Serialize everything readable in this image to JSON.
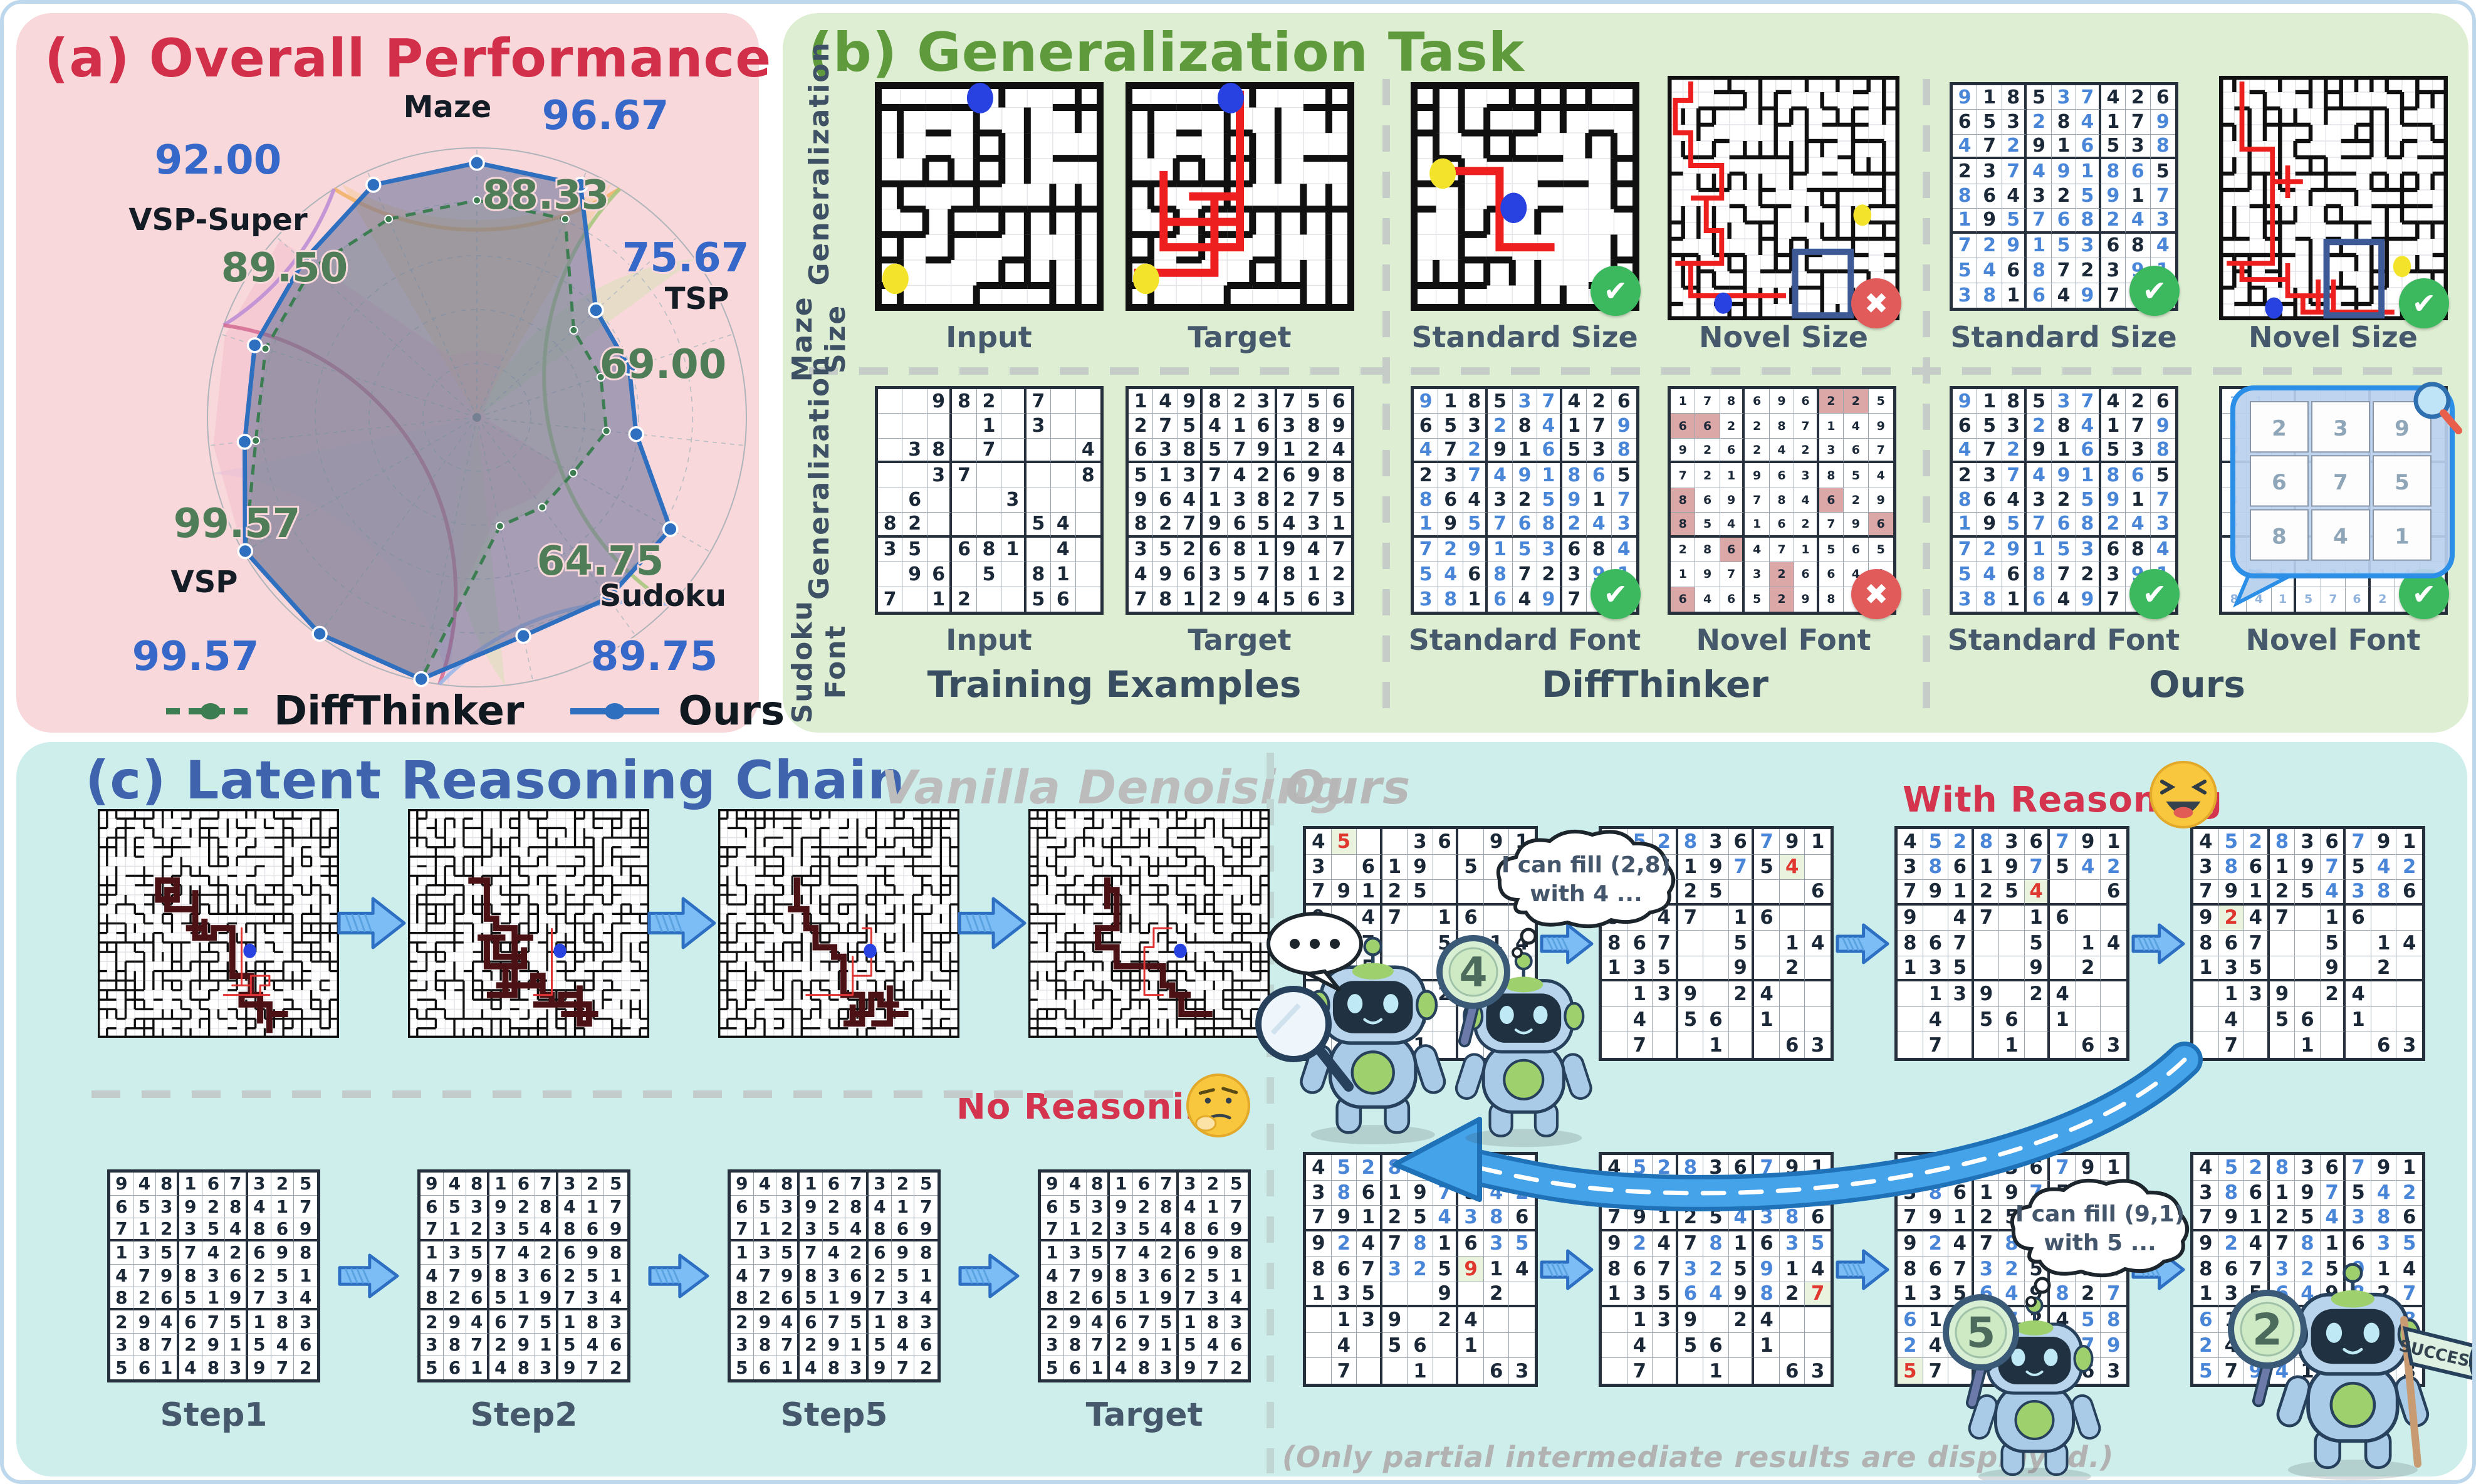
{
  "panel_a": {
    "title": "(a) Overall Performance",
    "legend": [
      {
        "label": "DiffThinker",
        "color": "#3c7d52",
        "style": "dashed"
      },
      {
        "label": "Ours",
        "color": "#2e6fc0",
        "style": "solid"
      }
    ]
  },
  "chart_data": {
    "type": "radar",
    "categories": [
      "Maze",
      "TSP",
      "Sudoku",
      "VSP",
      "VSP-Super"
    ],
    "series": [
      {
        "name": "DiffThinker",
        "color": "#3c7d52",
        "dashed": true,
        "values": [
          88.33,
          69.0,
          64.75,
          99.57,
          89.5
        ]
      },
      {
        "name": "Ours",
        "color": "#2e6fc0",
        "dashed": false,
        "values": [
          96.67,
          75.67,
          89.75,
          99.57,
          92.0
        ]
      }
    ],
    "rmin": 40,
    "rmax": 100,
    "axis_angles": [
      90,
      18,
      -54,
      -126,
      -198
    ],
    "grid": true,
    "legend_position": "bottom",
    "value_labels": [
      {
        "text": "96.67",
        "x": 940,
        "y": 185,
        "cls": "blue"
      },
      {
        "text": "88.33",
        "x": 845,
        "y": 312,
        "cls": "green"
      },
      {
        "text": "92.00",
        "x": 322,
        "y": 256,
        "cls": "blue"
      },
      {
        "text": "89.50",
        "x": 428,
        "y": 428,
        "cls": "green"
      },
      {
        "text": "75.67",
        "x": 1068,
        "y": 412,
        "cls": "blue"
      },
      {
        "text": "69.00",
        "x": 1032,
        "y": 582,
        "cls": "green"
      },
      {
        "text": "64.75",
        "x": 932,
        "y": 896,
        "cls": "green"
      },
      {
        "text": "89.75",
        "x": 1018,
        "y": 1048,
        "cls": "blue"
      },
      {
        "text": "99.57",
        "x": 352,
        "y": 836,
        "cls": "green"
      },
      {
        "text": "99.57",
        "x": 286,
        "y": 1048,
        "cls": "blue"
      }
    ],
    "axis_labels": [
      {
        "text": "Maze",
        "x": 688,
        "y": 166
      },
      {
        "text": "TSP",
        "x": 1086,
        "y": 472
      },
      {
        "text": "Sudoku",
        "x": 1032,
        "y": 946
      },
      {
        "text": "VSP",
        "x": 300,
        "y": 924
      },
      {
        "text": "VSP-Super",
        "x": 322,
        "y": 346
      }
    ],
    "ring_arcs": [
      {
        "from": 58,
        "to": 122,
        "color": "#f2b469"
      },
      {
        "from": 122,
        "to": 160,
        "color": "#bf8fd4"
      },
      {
        "from": 160,
        "to": 262,
        "color": "#d56f93"
      },
      {
        "from": 262,
        "to": 316,
        "color": "#9db8e8"
      },
      {
        "from": 316,
        "to": 418,
        "color": "#a9c87e"
      }
    ]
  },
  "panel_b": {
    "title": "(b) Generalization Task",
    "row_labels": [
      [
        "Maze Size",
        "Generalization"
      ],
      [
        "Sudoku Font",
        "Generalization"
      ]
    ],
    "top_labels": [
      "Input",
      "Target",
      "Standard Size",
      "Novel Size",
      "Standard Size",
      "Novel Size"
    ],
    "bottom_labels": [
      "Input",
      "Target",
      "Standard Font",
      "Novel Font",
      "Standard Font",
      "Novel Font"
    ],
    "sections": [
      "Training Examples",
      "DiffThinker",
      "Ours"
    ],
    "zoom_box": [
      [
        "2",
        "3",
        "9"
      ],
      [
        "6",
        "7",
        "5"
      ],
      [
        "8",
        "4",
        "1"
      ]
    ]
  },
  "panel_c": {
    "title": "(c) Latent Reasoning Chain",
    "left_header": "Vanilla Denoising",
    "right_header": "Ours",
    "no_reasoning": "No Reasoning",
    "with_reasoning": "With Reasoning",
    "steps": [
      "Step1",
      "Step2",
      "Step5",
      "Target"
    ],
    "caption": "(Only partial intermediate results are displayed.)",
    "bubble_dots": "...",
    "bubble1": [
      "I can fill (2,8)",
      "with 4 ..."
    ],
    "bubble2": [
      "I can fill (9,1)",
      "with 5 ..."
    ],
    "paddles": [
      "4",
      "5",
      "2"
    ],
    "flag": "SUCCESS"
  },
  "icons": {
    "check": "✔",
    "cross": "✖",
    "magnifier": "zoom-lens",
    "robot": "robot-assistant"
  },
  "sudoku": {
    "b_input": {
      "v": [
        "..982.7..",
        "....1.3..",
        ".38.7...4",
        "..37....8",
        ".6...3...",
        "82....54.",
        "35.681.4.",
        ".96.5.81.",
        "7.12..56."
      ]
    },
    "b_target": {
      "v": [
        "149823756",
        "275416389",
        "638579124",
        "513742698",
        "964138275",
        "827965431",
        "352681947",
        "496357812",
        "781294563"
      ]
    },
    "b_std": {
      "v": [
        "918537426",
        "653284179",
        "472916538",
        "237491865",
        "864325917",
        "195768243",
        "729153684",
        "546872391",
        "381649752"
      ],
      "c": [
        "bkkkbbkkk",
        "kkkbkbkkb",
        "bkbkkbkkb",
        "kkbbbbbbk",
        "bkkkkbbkb",
        "bkbbbbbbb",
        "bbbbbbkkb",
        "bbkbkkkbb",
        "bbkbkbkbb"
      ]
    },
    "b_novel_diff": {
      "v": [
        "178696225",
        "662287149",
        "926242367",
        "721963854",
        "869784629",
        "854162796",
        "286471565",
        "197326642",
        "646529871"
      ],
      "small": true,
      "pink": [
        [
          1,
          7
        ],
        [
          1,
          8
        ],
        [
          2,
          1
        ],
        [
          2,
          2
        ],
        [
          5,
          1
        ],
        [
          5,
          7
        ],
        [
          6,
          1
        ],
        [
          6,
          9
        ],
        [
          7,
          3
        ],
        [
          8,
          5
        ],
        [
          9,
          1
        ],
        [
          9,
          5
        ]
      ]
    },
    "b_novel_ours": {
      "v": [
        "71.......",
        "45.......",
        "98.......",
        "12.......",
        "38.......",
        "58.......",
        "23.......",
        ".75329148",
        "84157628."
      ],
      "light": true,
      "small": true
    },
    "c_solved": {
      "v": [
        "948167325",
        "653928417",
        "712354869",
        "135742698",
        "479836251",
        "826519734",
        "294675183",
        "387291546",
        "561483972"
      ]
    }
  },
  "chain": {
    "solution": [
      "452836791",
      "386197542",
      "791254386",
      "924781635",
      "867325914",
      "135649827",
      "613972458",
      "248563179",
      "579418263"
    ],
    "given": [
      "100011011",
      "101110100",
      "111110001",
      "101101100",
      "111001011",
      "111001010",
      "011101100",
      "010110100",
      "010010011"
    ],
    "fills": [
      [
        1,
        2
      ],
      [
        1,
        3
      ],
      [
        1,
        4
      ],
      [
        1,
        7
      ],
      [
        2,
        2
      ],
      [
        2,
        6
      ],
      [
        2,
        8
      ],
      [
        2,
        9
      ],
      [
        3,
        6
      ],
      [
        3,
        7
      ],
      [
        3,
        8
      ],
      [
        4,
        2
      ],
      [
        4,
        5
      ],
      [
        4,
        8
      ],
      [
        4,
        9
      ],
      [
        5,
        4
      ],
      [
        5,
        5
      ],
      [
        5,
        7
      ],
      [
        6,
        4
      ],
      [
        6,
        5
      ],
      [
        6,
        7
      ],
      [
        6,
        9
      ],
      [
        7,
        1
      ],
      [
        7,
        5
      ],
      [
        7,
        8
      ],
      [
        7,
        9
      ],
      [
        8,
        1
      ],
      [
        8,
        3
      ],
      [
        8,
        6
      ],
      [
        8,
        8
      ],
      [
        8,
        9
      ],
      [
        9,
        1
      ],
      [
        9,
        3
      ],
      [
        9,
        4
      ],
      [
        9,
        6
      ],
      [
        9,
        7
      ]
    ],
    "grids": [
      {
        "upto": 0,
        "red": [
          1,
          2
        ]
      },
      {
        "upto": 6,
        "red": [
          2,
          8
        ]
      },
      {
        "upto": 8,
        "red": [
          3,
          6
        ]
      },
      {
        "upto": 11,
        "red": [
          4,
          2
        ]
      },
      {
        "upto": 17,
        "red": [
          5,
          7
        ]
      },
      {
        "upto": 21,
        "red": [
          6,
          9
        ]
      },
      {
        "upto": 31,
        "red": [
          9,
          1
        ]
      },
      {
        "upto": 36,
        "red": null
      }
    ]
  }
}
